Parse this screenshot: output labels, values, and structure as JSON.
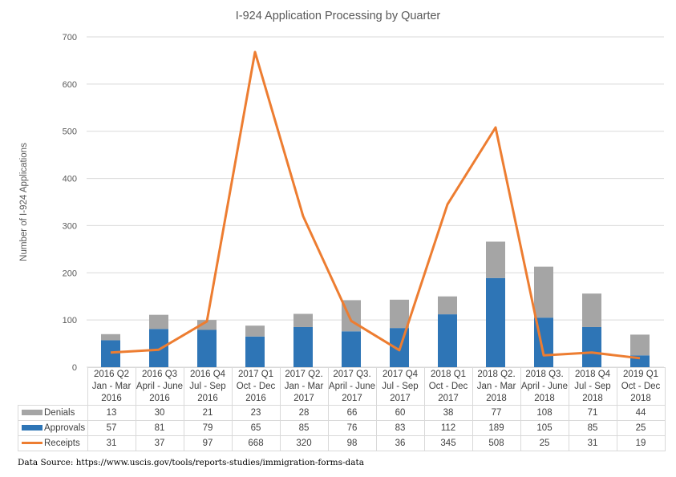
{
  "chart_data": {
    "type": "bar",
    "subtype": "stacked-bar-with-line",
    "title": "I-924 Application Processing by Quarter",
    "xlabel": "",
    "ylabel": "Number of I-924 Applications",
    "ylim": [
      0,
      700
    ],
    "yticks": [
      0,
      100,
      200,
      300,
      400,
      500,
      600,
      700
    ],
    "grid": true,
    "legend": "data-table-left",
    "categories": [
      [
        "2016 Q2",
        "Jan - Mar",
        "2016"
      ],
      [
        "2016 Q3",
        "April - June",
        "2016"
      ],
      [
        "2016 Q4",
        "Jul - Sep",
        "2016"
      ],
      [
        "2017 Q1",
        "Oct - Dec",
        "2016"
      ],
      [
        "2017 Q2.",
        "Jan - Mar",
        "2017"
      ],
      [
        "2017 Q3.",
        "April - June",
        "2017"
      ],
      [
        "2017 Q4",
        "Jul - Sep",
        "2017"
      ],
      [
        "2018 Q1",
        "Oct - Dec",
        "2017"
      ],
      [
        "2018 Q2.",
        "Jan - Mar",
        "2018"
      ],
      [
        "2018 Q3.",
        "April - June",
        "2018"
      ],
      [
        "2018 Q4",
        "Jul - Sep",
        "2018"
      ],
      [
        "2019  Q1",
        "Oct - Dec",
        "2018"
      ]
    ],
    "series": [
      {
        "name": "Denials",
        "type": "bar-stacked",
        "color": "#a5a5a5",
        "values": [
          13,
          30,
          21,
          23,
          28,
          66,
          60,
          38,
          77,
          108,
          71,
          44
        ]
      },
      {
        "name": "Approvals",
        "type": "bar-stacked",
        "color": "#2e75b6",
        "values": [
          57,
          81,
          79,
          65,
          85,
          76,
          83,
          112,
          189,
          105,
          85,
          25
        ]
      },
      {
        "name": "Receipts",
        "type": "line",
        "color": "#ed7d31",
        "values": [
          31,
          37,
          97,
          668,
          320,
          98,
          36,
          345,
          508,
          25,
          31,
          19
        ]
      }
    ]
  },
  "footer": {
    "source": "Data Source: https://www.uscis.gov/tools/reports-studies/immigration-forms-data"
  }
}
